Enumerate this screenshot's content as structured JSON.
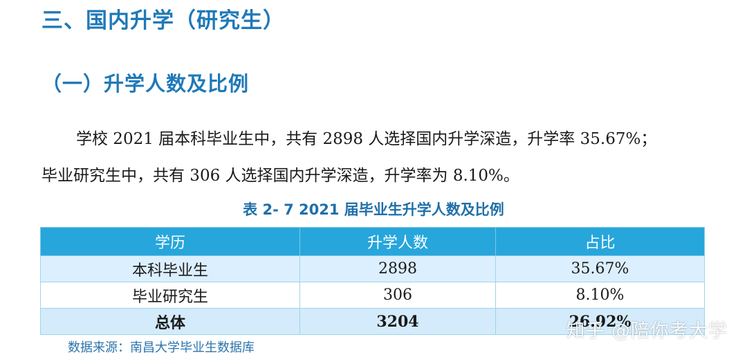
{
  "section_title": "三、国内升学（研究生）",
  "subsection_title": "（一）升学人数及比例",
  "paragraph": {
    "line1": "学校 2021 届本科毕业生中，共有 2898 人选择国内升学深造，升学率 35.67%；",
    "line2": "毕业研究生中，共有 306 人选择国内升学深造，升学率为 8.10%。"
  },
  "table": {
    "caption": "表 2- 7  2021 届毕业生升学人数及比例",
    "headers": [
      "学历",
      "升学人数",
      "占比"
    ],
    "rows": [
      {
        "education": "本科毕业生",
        "count": "2898",
        "ratio": "35.67%"
      },
      {
        "education": "毕业研究生",
        "count": "306",
        "ratio": "8.10%"
      },
      {
        "education": "总体",
        "count": "3204",
        "ratio": "26.92%"
      }
    ]
  },
  "source": "数据来源：南昌大学毕业生数据库",
  "watermark": "知乎 @陪你考大学",
  "colors": {
    "heading": "#1f79b8",
    "table_header": "#27a6dc",
    "table_row_alt": "#dcefff",
    "source_text": "#2c74ad"
  }
}
